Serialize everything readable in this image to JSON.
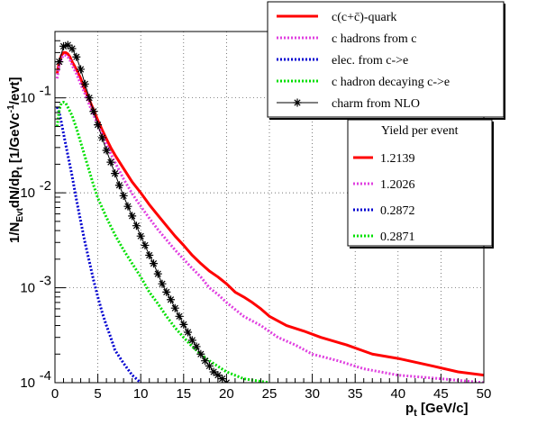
{
  "chart_data": {
    "type": "line",
    "xlabel": "p",
    "xlabel_sub": "t",
    "xlabel_unit": " [GeV/c]",
    "ylabel_parts": [
      "1/N",
      "Evt",
      "dN/dp",
      "t",
      " [1/GeVc",
      "-1",
      "/evt]"
    ],
    "xlim": [
      0,
      50
    ],
    "ylim": [
      0.0001,
      0.5
    ],
    "ylog": true,
    "grid": true,
    "x_ticks": [
      0,
      5,
      10,
      15,
      20,
      25,
      30,
      35,
      40,
      45,
      50
    ],
    "y_ticks": [
      {
        "value": 0.0001,
        "base": "10",
        "exp": "-4"
      },
      {
        "value": 0.001,
        "base": "10",
        "exp": "-3"
      },
      {
        "value": 0.01,
        "base": "10",
        "exp": "-2"
      },
      {
        "value": 0.1,
        "base": "10",
        "exp": "-1"
      }
    ],
    "series": [
      {
        "name": "c(c+c̄)-quark",
        "color": "#ff0000",
        "style": "solid",
        "points": [
          [
            0.25,
            0.18
          ],
          [
            0.5,
            0.24
          ],
          [
            0.75,
            0.28
          ],
          [
            1.0,
            0.3
          ],
          [
            1.25,
            0.3
          ],
          [
            1.5,
            0.29
          ],
          [
            1.75,
            0.27
          ],
          [
            2.0,
            0.24
          ],
          [
            2.5,
            0.2
          ],
          [
            3.0,
            0.16
          ],
          [
            3.5,
            0.12
          ],
          [
            4.0,
            0.095
          ],
          [
            4.5,
            0.075
          ],
          [
            5.0,
            0.058
          ],
          [
            5.5,
            0.046
          ],
          [
            6.0,
            0.037
          ],
          [
            6.5,
            0.03
          ],
          [
            7.0,
            0.025
          ],
          [
            8.0,
            0.018
          ],
          [
            9.0,
            0.013
          ],
          [
            10.0,
            0.01
          ],
          [
            11.0,
            0.0075
          ],
          [
            12.0,
            0.0058
          ],
          [
            13.0,
            0.0045
          ],
          [
            14.0,
            0.0035
          ],
          [
            15.0,
            0.0028
          ],
          [
            16.0,
            0.0022
          ],
          [
            17.0,
            0.0018
          ],
          [
            18.0,
            0.0015
          ],
          [
            19.0,
            0.0013
          ],
          [
            20.0,
            0.0011
          ],
          [
            21.0,
            0.0009
          ],
          [
            22.0,
            0.0008
          ],
          [
            23.0,
            0.0007
          ],
          [
            24.0,
            0.0006
          ],
          [
            25.0,
            0.0005
          ],
          [
            27.0,
            0.0004
          ],
          [
            29.0,
            0.00035
          ],
          [
            31.0,
            0.0003
          ],
          [
            34.0,
            0.00025
          ],
          [
            37.0,
            0.0002
          ],
          [
            40.0,
            0.00018
          ],
          [
            44.0,
            0.00015
          ],
          [
            47.0,
            0.00013
          ],
          [
            50.0,
            0.00012
          ]
        ]
      },
      {
        "name": "c hadrons from c",
        "color": "#e040e0",
        "style": "dotted",
        "points": [
          [
            0.25,
            0.16
          ],
          [
            0.5,
            0.22
          ],
          [
            0.75,
            0.26
          ],
          [
            1.0,
            0.28
          ],
          [
            1.25,
            0.28
          ],
          [
            1.5,
            0.27
          ],
          [
            1.75,
            0.25
          ],
          [
            2.0,
            0.22
          ],
          [
            2.5,
            0.18
          ],
          [
            3.0,
            0.14
          ],
          [
            3.5,
            0.11
          ],
          [
            4.0,
            0.085
          ],
          [
            4.5,
            0.066
          ],
          [
            5.0,
            0.052
          ],
          [
            6.0,
            0.032
          ],
          [
            7.0,
            0.021
          ],
          [
            8.0,
            0.014
          ],
          [
            9.0,
            0.0098
          ],
          [
            10.0,
            0.0072
          ],
          [
            11.0,
            0.0054
          ],
          [
            12.0,
            0.0041
          ],
          [
            13.0,
            0.0032
          ],
          [
            14.0,
            0.0025
          ],
          [
            15.0,
            0.002
          ],
          [
            16.0,
            0.0016
          ],
          [
            17.0,
            0.0013
          ],
          [
            18.0,
            0.001
          ],
          [
            19.0,
            0.00085
          ],
          [
            20.0,
            0.0007
          ],
          [
            22.0,
            0.0005
          ],
          [
            24.0,
            0.0004
          ],
          [
            26.0,
            0.0003
          ],
          [
            28.0,
            0.00025
          ],
          [
            30.0,
            0.0002
          ],
          [
            33.0,
            0.00017
          ],
          [
            36.0,
            0.00014
          ],
          [
            40.0,
            0.00012
          ],
          [
            45.0,
            0.00011
          ],
          [
            50.0,
            0.0001
          ]
        ]
      },
      {
        "name": "elec. from c->e",
        "color": "#0000d0",
        "style": "dotted",
        "points": [
          [
            0.25,
            0.08
          ],
          [
            0.5,
            0.07
          ],
          [
            0.75,
            0.055
          ],
          [
            1.0,
            0.042
          ],
          [
            1.5,
            0.025
          ],
          [
            2.0,
            0.015
          ],
          [
            2.5,
            0.0085
          ],
          [
            3.0,
            0.005
          ],
          [
            3.5,
            0.003
          ],
          [
            4.0,
            0.0019
          ],
          [
            4.5,
            0.0012
          ],
          [
            5.0,
            0.0008
          ],
          [
            5.5,
            0.00055
          ],
          [
            6.0,
            0.0004
          ],
          [
            6.5,
            0.0003
          ],
          [
            7.0,
            0.00022
          ],
          [
            8.0,
            0.00016
          ],
          [
            9.0,
            0.00012
          ],
          [
            10.0,
            0.0001
          ]
        ]
      },
      {
        "name": "c hadron decaying c->e",
        "color": "#00e000",
        "style": "dotted",
        "points": [
          [
            0.25,
            0.05
          ],
          [
            0.5,
            0.075
          ],
          [
            0.75,
            0.088
          ],
          [
            1.0,
            0.09
          ],
          [
            1.25,
            0.088
          ],
          [
            1.5,
            0.08
          ],
          [
            2.0,
            0.065
          ],
          [
            2.5,
            0.048
          ],
          [
            3.0,
            0.034
          ],
          [
            3.5,
            0.024
          ],
          [
            4.0,
            0.017
          ],
          [
            4.5,
            0.012
          ],
          [
            5.0,
            0.0088
          ],
          [
            6.0,
            0.0055
          ],
          [
            7.0,
            0.0036
          ],
          [
            8.0,
            0.0025
          ],
          [
            9.0,
            0.0018
          ],
          [
            10.0,
            0.0013
          ],
          [
            11.0,
            0.0009
          ],
          [
            12.0,
            0.00068
          ],
          [
            13.0,
            0.0005
          ],
          [
            14.0,
            0.00038
          ],
          [
            15.0,
            0.0003
          ],
          [
            16.0,
            0.00024
          ],
          [
            17.0,
            0.0002
          ],
          [
            18.0,
            0.00017
          ],
          [
            20.0,
            0.00013
          ],
          [
            22.0,
            0.00011
          ],
          [
            25.0,
            0.0001
          ]
        ]
      },
      {
        "name": "charm from NLO",
        "color": "#000000",
        "style": "star",
        "points": [
          [
            0.5,
            0.24
          ],
          [
            1.0,
            0.35
          ],
          [
            1.5,
            0.36
          ],
          [
            2.0,
            0.33
          ],
          [
            2.5,
            0.27
          ],
          [
            3.0,
            0.2
          ],
          [
            3.5,
            0.14
          ],
          [
            4.0,
            0.1
          ],
          [
            4.5,
            0.072
          ],
          [
            5.0,
            0.052
          ],
          [
            5.5,
            0.038
          ],
          [
            6.0,
            0.028
          ],
          [
            6.5,
            0.021
          ],
          [
            7.0,
            0.016
          ],
          [
            7.5,
            0.012
          ],
          [
            8.0,
            0.0093
          ],
          [
            8.5,
            0.0072
          ],
          [
            9.0,
            0.0057
          ],
          [
            9.5,
            0.0045
          ],
          [
            10.0,
            0.0035
          ],
          [
            10.5,
            0.0028
          ],
          [
            11.0,
            0.0022
          ],
          [
            11.5,
            0.0018
          ],
          [
            12.0,
            0.0014
          ],
          [
            12.5,
            0.0011
          ],
          [
            13.0,
            0.0009
          ],
          [
            13.5,
            0.00075
          ],
          [
            14.0,
            0.00061
          ],
          [
            14.5,
            0.0005
          ],
          [
            15.0,
            0.00041
          ],
          [
            15.5,
            0.00034
          ],
          [
            16.0,
            0.00028
          ],
          [
            16.5,
            0.00024
          ],
          [
            17.0,
            0.0002
          ],
          [
            17.5,
            0.00017
          ],
          [
            18.0,
            0.00015
          ],
          [
            18.5,
            0.00013
          ],
          [
            19.0,
            0.00012
          ],
          [
            19.5,
            0.00011
          ],
          [
            20.0,
            0.0001
          ]
        ]
      }
    ],
    "legend": {
      "entries": [
        {
          "label": "c(c+c̄)-quark",
          "color": "#ff0000",
          "style": "solid"
        },
        {
          "label": "c hadrons from c",
          "color": "#e040e0",
          "style": "dotted"
        },
        {
          "label": "elec. from c->e",
          "color": "#0000d0",
          "style": "dotted"
        },
        {
          "label": "c hadron decaying c->e",
          "color": "#00e000",
          "style": "dotted"
        },
        {
          "label": "charm from NLO",
          "color": "#000000",
          "style": "star"
        }
      ]
    },
    "yield_box": {
      "title": "Yield per event",
      "entries": [
        {
          "label": "1.2139",
          "color": "#ff0000",
          "style": "solid"
        },
        {
          "label": "1.2026",
          "color": "#e040e0",
          "style": "dotted"
        },
        {
          "label": "0.2872",
          "color": "#0000d0",
          "style": "dotted"
        },
        {
          "label": "0.2871",
          "color": "#00e000",
          "style": "dotted"
        }
      ]
    }
  }
}
